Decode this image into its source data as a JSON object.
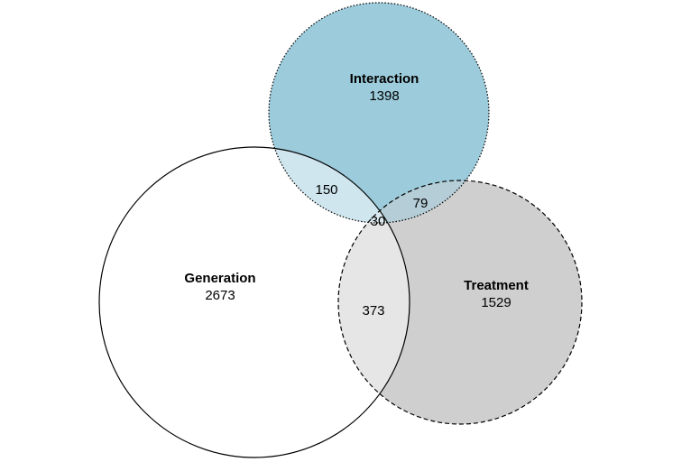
{
  "sets": {
    "interaction": {
      "label": "Interaction",
      "count": "1398",
      "color": "#9ccbdb",
      "border": "dotted"
    },
    "generation": {
      "label": "Generation",
      "count": "2673",
      "color": "#ffffff",
      "border": "solid"
    },
    "treatment": {
      "label": "Treatment",
      "count": "1529",
      "color": "#cfcfcf",
      "border": "dashed"
    }
  },
  "overlaps": {
    "interaction_generation": "150",
    "interaction_treatment": "79",
    "all_three": "30",
    "generation_treatment": "373"
  },
  "colors": {
    "interaction_generation": "#cfe6ef",
    "interaction_treatment": "#b4cdd6",
    "generation_treatment": "#e6e6e6",
    "all_three": "#d9e8ee",
    "outline": "#000000"
  }
}
